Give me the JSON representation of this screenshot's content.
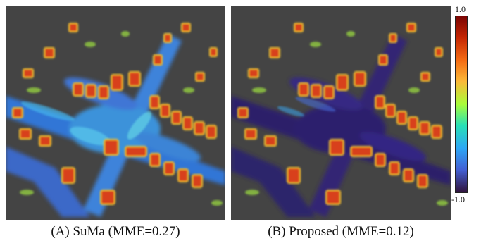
{
  "panels": [
    {
      "caption": "(A) SuMa (MME=0.27)",
      "style": "suma"
    },
    {
      "caption": "(B) Proposed (MME=0.12)",
      "style": "proposed"
    }
  ],
  "colorbar": {
    "max_label": "1.0",
    "min_label": "-1.0",
    "colors": [
      "#7a0403",
      "#c42503",
      "#f46b13",
      "#fbb938",
      "#a8fd39",
      "#28e0b6",
      "#2da6f5",
      "#4360d5",
      "#30123b"
    ]
  },
  "background_color": "#444444"
}
